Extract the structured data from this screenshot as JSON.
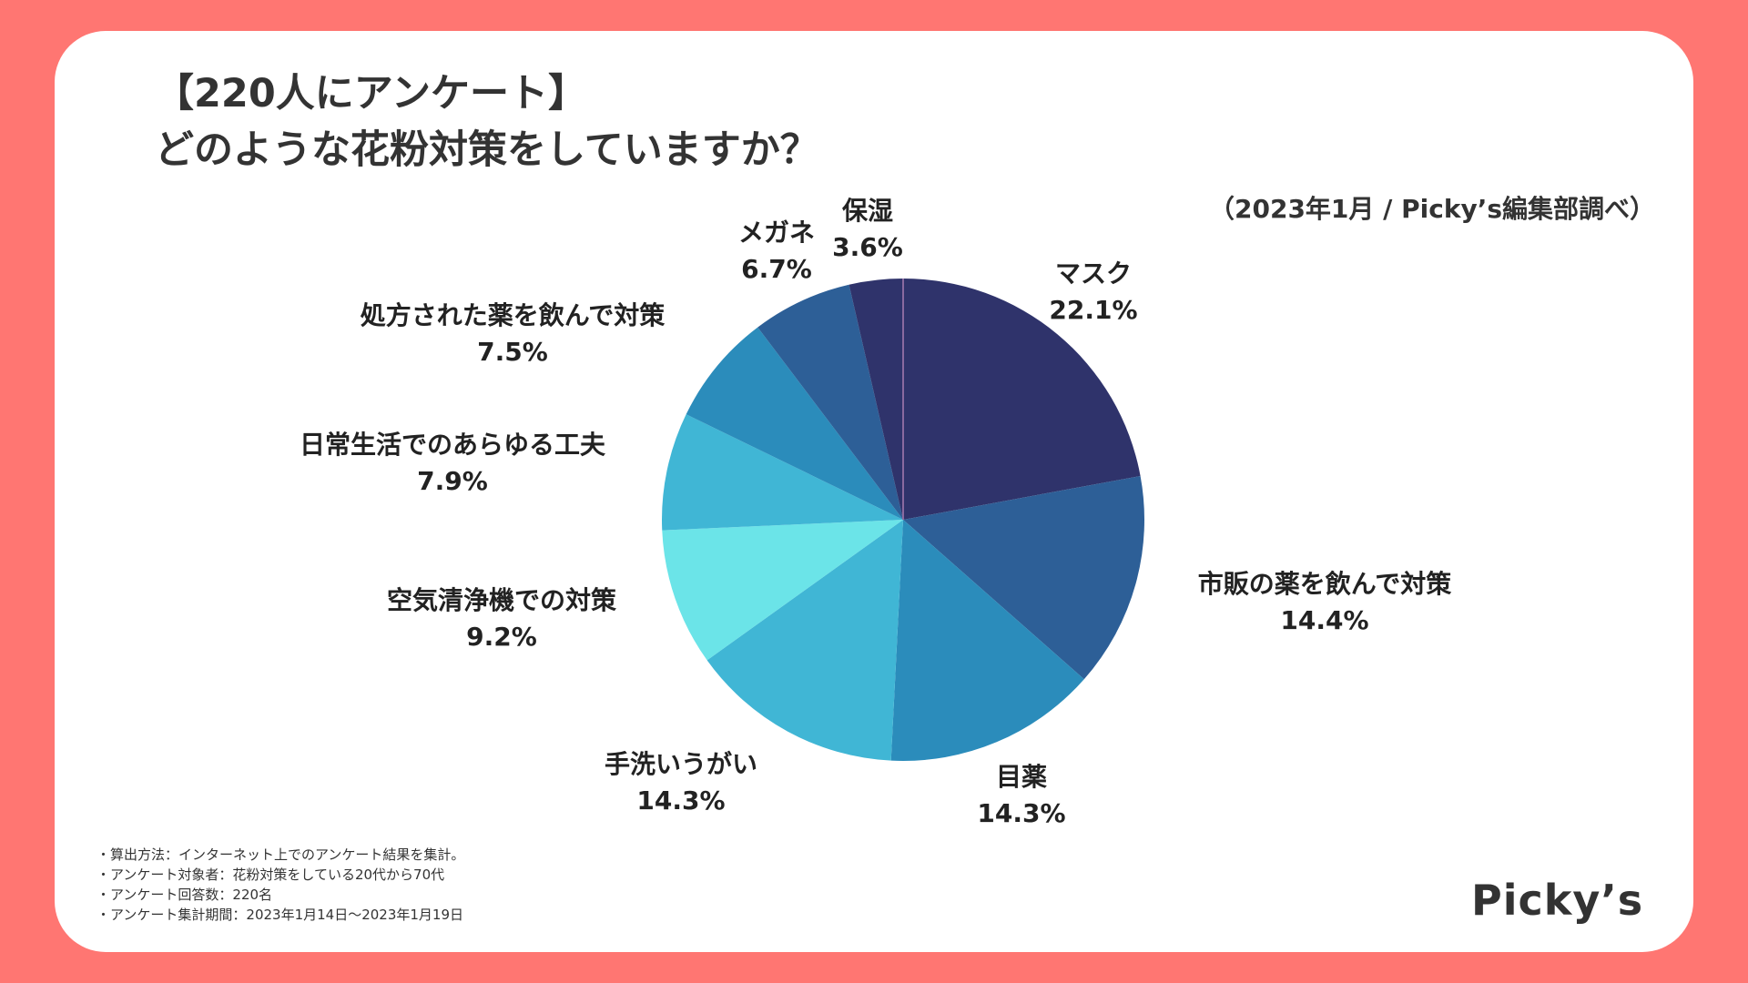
{
  "title_lines": [
    "【220人にアンケート】",
    "どのような花粉対策をしていますか？"
  ],
  "source": "（2023年1月 / Picky’s編集部調べ）",
  "colors": {
    "background": "#ff7672",
    "card": "#ffffff",
    "slices": [
      "#2f336b",
      "#2d5f97",
      "#2b8cbb",
      "#40b6d5",
      "#6be4e8",
      "#40b6d5",
      "#2b8cbb",
      "#2d5f97",
      "#2f336b"
    ]
  },
  "chart_data": {
    "type": "pie",
    "start": "top",
    "direction": "clockwise",
    "categories": [
      "マスク",
      "市販の薬を飲んで対策",
      "目薬",
      "手洗いうがい",
      "空気清浄機での対策",
      "日常生活でのあらゆる工夫",
      "処方された薬を飲んで対策",
      "メガネ",
      "保湿"
    ],
    "values": [
      22.1,
      14.4,
      14.3,
      14.3,
      9.2,
      7.9,
      7.5,
      6.7,
      3.6
    ],
    "value_labels": [
      "22.1%",
      "14.4%",
      "14.3%",
      "14.3%",
      "9.2%",
      "7.9%",
      "7.5%",
      "6.7%",
      "3.6%"
    ],
    "unit": "%"
  },
  "notes": [
    "・算出方法：インターネット上でのアンケート結果を集計。",
    "・アンケート対象者：花粉対策をしている20代から70代",
    "・アンケート回答数：220名",
    "・アンケート集計期間：2023年1月14日〜2023年1月19日"
  ],
  "logo": "Picky’s"
}
